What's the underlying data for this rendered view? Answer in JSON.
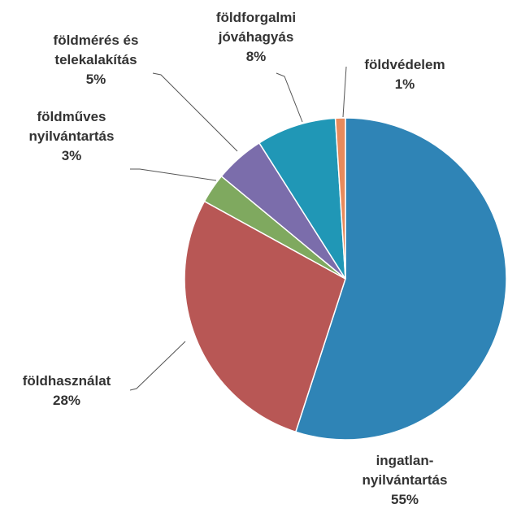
{
  "chart_data": {
    "type": "pie",
    "categories": [
      "ingatlan-nyilvántartás",
      "földhasználat",
      "földműves nyilvántartás",
      "földmérés és telekalakítás",
      "földforgalmi jóváhagyás",
      "földvédelem"
    ],
    "values": [
      55,
      28,
      3,
      5,
      8,
      1
    ],
    "value_labels": [
      "55%",
      "28%",
      "3%",
      "5%",
      "8%",
      "1%"
    ],
    "colors": [
      "#2f84b6",
      "#b85755",
      "#7fa95f",
      "#7b6dab",
      "#2097b6",
      "#e88a5c"
    ]
  }
}
